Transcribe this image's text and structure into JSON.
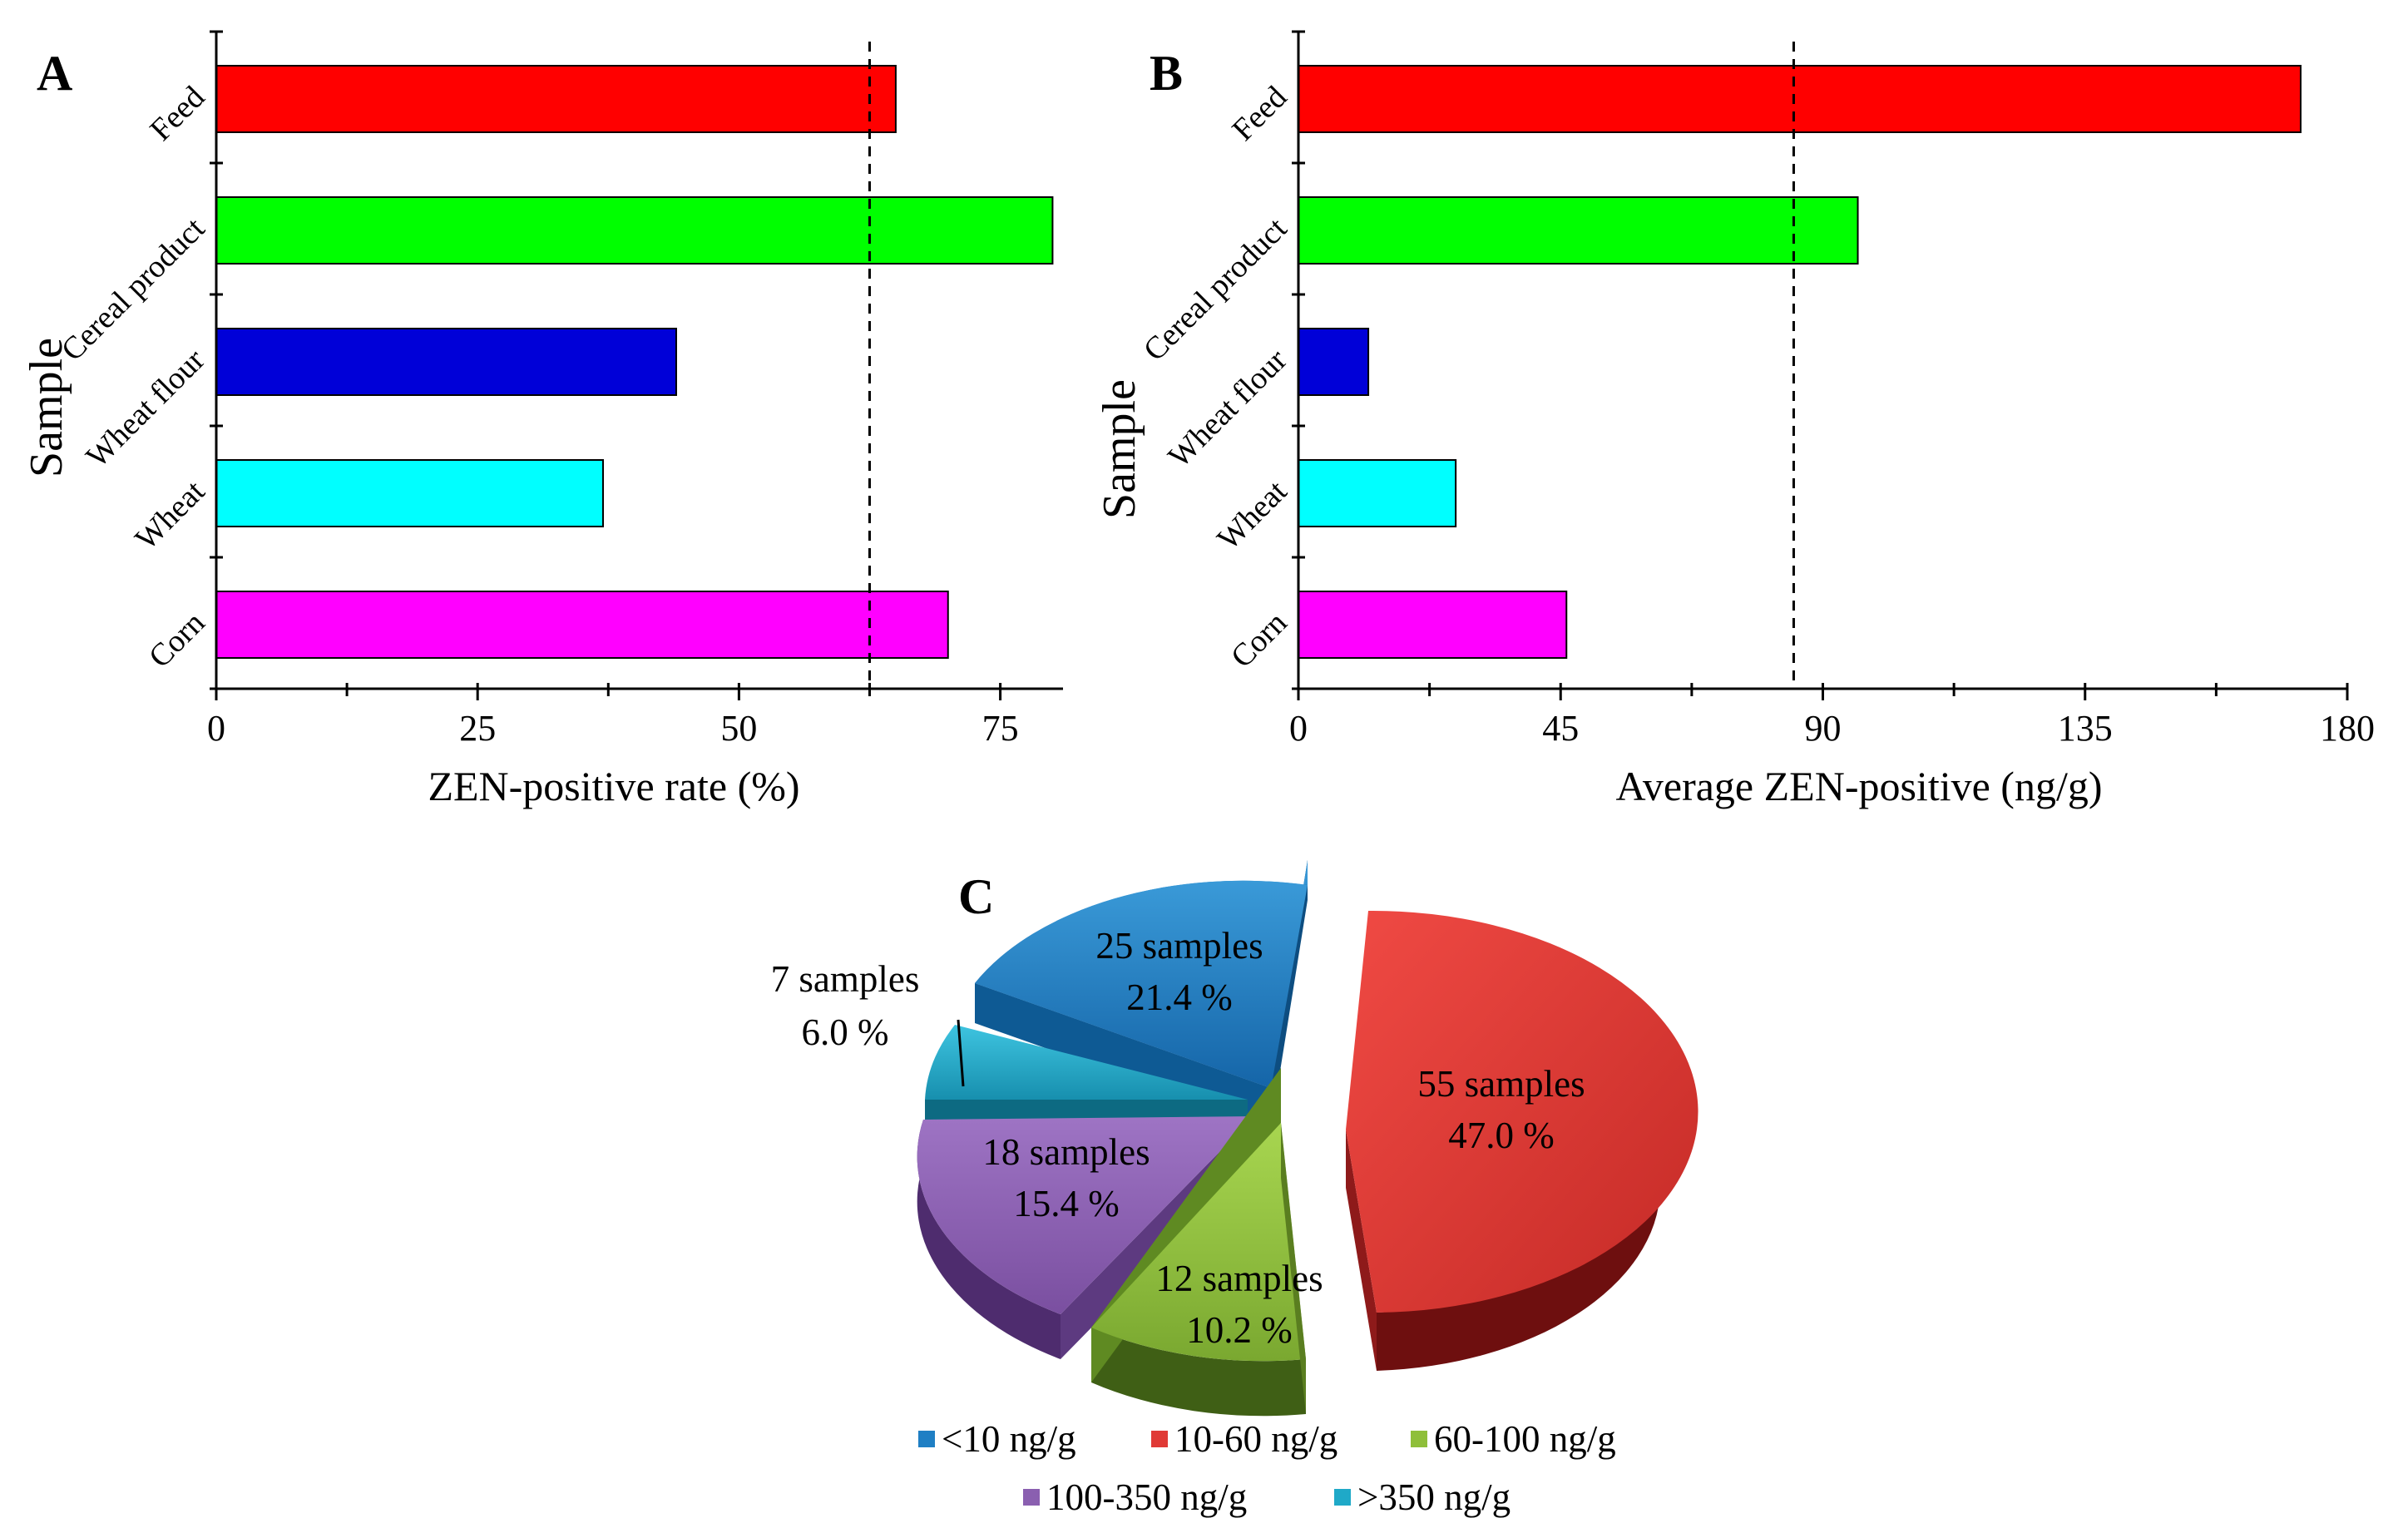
{
  "colors": {
    "feed": "#ff0000",
    "cereal": "#00ff00",
    "wheat_flour": "#0000d8",
    "wheat": "#00ffff",
    "corn": "#ff00ff",
    "pie_lt10": "#1f7fc4",
    "pie_10_60": "#e03a36",
    "pie_60_100": "#8fbf3a",
    "pie_100_350": "#8a5fb0",
    "pie_gt350": "#1fa9c8"
  },
  "chart_data": [
    {
      "panel": "A",
      "type": "bar",
      "orientation": "horizontal",
      "categories": [
        "Feed",
        "Cereal product",
        "Wheat flour",
        "Wheat",
        "Corn"
      ],
      "values": [
        65,
        80,
        44,
        37,
        70
      ],
      "reference_line": 62.5,
      "xlabel": "ZEN-positive rate (%)",
      "ylabel": "Sample",
      "xlim": [
        0,
        81
      ],
      "xticks": [
        0,
        25,
        50,
        75
      ],
      "xtick_labels": [
        "0",
        "25",
        "50",
        "75"
      ]
    },
    {
      "panel": "B",
      "type": "bar",
      "orientation": "horizontal",
      "categories": [
        "Feed",
        "Cereal product",
        "Wheat flour",
        "Wheat",
        "Corn"
      ],
      "values": [
        172,
        96,
        12,
        27,
        46
      ],
      "reference_line": 85,
      "xlabel": "Average ZEN-positive (ng/g)",
      "ylabel": "Sample",
      "xlim": [
        0,
        180
      ],
      "xticks": [
        0,
        45,
        90,
        135,
        180
      ],
      "xtick_labels": [
        "0",
        "45",
        "90",
        "135",
        "180"
      ]
    },
    {
      "panel": "C",
      "type": "pie",
      "slices": [
        {
          "legend": "<10 ng/g",
          "count_label": "25 samples",
          "pct_label": "21.4 %",
          "value": 21.4
        },
        {
          "legend": "10-60 ng/g",
          "count_label": "55 samples",
          "pct_label": "47.0 %",
          "value": 47.0
        },
        {
          "legend": "60-100 ng/g",
          "count_label": "12 samples",
          "pct_label": "10.2 %",
          "value": 10.2
        },
        {
          "legend": "100-350 ng/g",
          "count_label": "18 samples",
          "pct_label": "15.4 %",
          "value": 15.4
        },
        {
          "legend": ">350 ng/g",
          "count_label": "7 samples",
          "pct_label": "6.0 %",
          "value": 6.0
        }
      ]
    }
  ]
}
